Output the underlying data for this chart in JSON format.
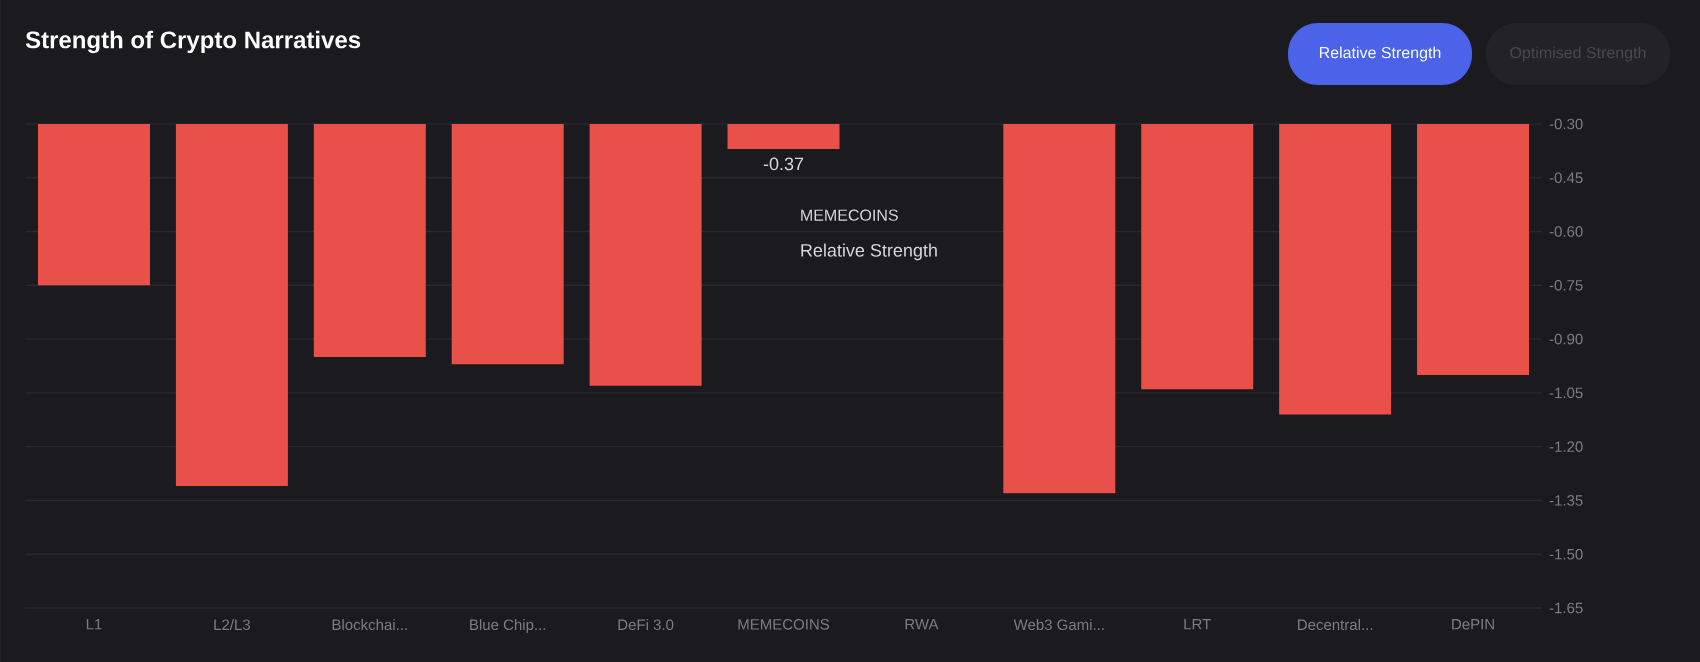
{
  "chart_data": {
    "type": "bar",
    "title": "Strength of Crypto Narratives",
    "annotations": [
      "Relative Strength",
      "Optimised Strength"
    ],
    "categories": [
      "L1",
      "L2/L3",
      "Blockchai...",
      "Blue Chip...",
      "DeFi 3.0",
      "MEMECOINS",
      "RWA",
      "Web3 Gami...",
      "LRT",
      "Decentral...",
      "DePIN"
    ],
    "series": [
      {
        "name": "Relative Strength",
        "color": "#e9504a",
        "values": [
          -0.75,
          -1.31,
          -0.95,
          -0.97,
          -1.03,
          -0.37,
          null,
          -1.33,
          -1.04,
          -1.11,
          -1.0
        ],
        "value_labels": [
          null,
          null,
          null,
          null,
          null,
          "-0.37",
          null,
          null,
          null,
          null,
          null
        ]
      }
    ],
    "ylim": [
      -1.65,
      -0.3
    ],
    "yticks": [
      {
        "value": -0.3,
        "label": "-0.30"
      },
      {
        "value": -0.45,
        "label": "-0.45"
      },
      {
        "value": -0.6,
        "label": "-0.60"
      },
      {
        "value": -0.75,
        "label": "-0.75"
      },
      {
        "value": -0.9,
        "label": "-0.90"
      },
      {
        "value": -1.05,
        "label": "-1.05"
      },
      {
        "value": -1.2,
        "label": "-1.20"
      },
      {
        "value": -1.35,
        "label": "-1.35"
      },
      {
        "value": -1.5,
        "label": "-1.50"
      },
      {
        "value": -1.65,
        "label": "-1.65"
      }
    ],
    "grid": "y",
    "legend": false
  }
}
